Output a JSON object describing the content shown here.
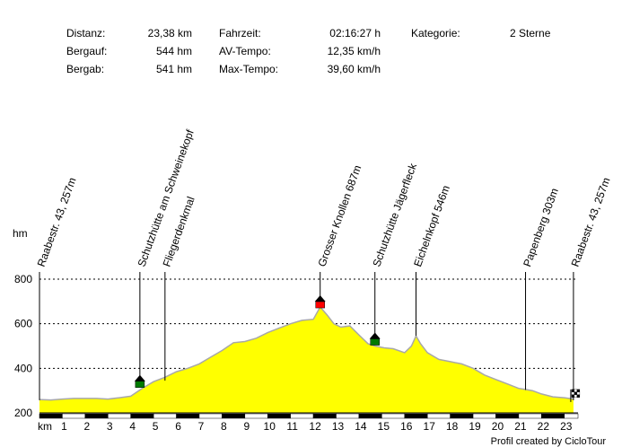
{
  "stats": {
    "distance_label": "Distanz:",
    "distance_value": "23,38 km",
    "ascent_label": "Bergauf:",
    "ascent_value": "544 hm",
    "descent_label": "Bergab:",
    "descent_value": "541 hm",
    "time_label": "Fahrzeit:",
    "time_value": "02:16:27 h",
    "avg_label": "AV-Tempo:",
    "avg_value": "12,35 km/h",
    "max_label": "Max-Tempo:",
    "max_value": "39,60 km/h",
    "category_label": "Kategorie:",
    "category_value": "2 Sterne"
  },
  "credit": "Profil created by CicloTour",
  "colors": {
    "fill": "#ffff00",
    "outline": "#a8a8a8",
    "marker_green": "#007a00",
    "marker_red": "#ff0000",
    "marker_roof": "#000000"
  },
  "chart_data": {
    "type": "area",
    "ylabel": "hm",
    "xlabel": "km",
    "xlim": [
      0,
      23.6
    ],
    "ylim": [
      200,
      800
    ],
    "yticks": [
      200,
      400,
      600,
      800
    ],
    "y_tick_labels": [
      "200",
      "400",
      "600",
      "800"
    ],
    "xticks": [
      1,
      2,
      3,
      4,
      5,
      6,
      7,
      8,
      9,
      10,
      11,
      12,
      13,
      14,
      15,
      16,
      17,
      18,
      19,
      20,
      21,
      22,
      23
    ],
    "x_tick_labels": [
      "1",
      "2",
      "3",
      "4",
      "5",
      "6",
      "7",
      "8",
      "9",
      "10",
      "11",
      "12",
      "13",
      "14",
      "15",
      "16",
      "17",
      "18",
      "19",
      "20",
      "21",
      "22",
      "23"
    ],
    "grid": "horizontal dashed",
    "x": [
      0,
      0.5,
      1,
      1.5,
      2,
      2.5,
      3,
      3.5,
      4,
      4.5,
      5,
      5.5,
      6,
      6.5,
      7,
      7.5,
      8,
      8.5,
      9,
      9.5,
      10,
      10.5,
      11,
      11.5,
      12,
      12.3,
      12.6,
      12.9,
      13.2,
      13.6,
      14,
      14.4,
      14.7,
      15.1,
      15.5,
      16,
      16.3,
      16.5,
      16.7,
      17,
      17.5,
      18,
      18.5,
      19,
      19.5,
      20,
      20.5,
      21,
      21.3,
      21.6,
      22,
      22.5,
      23,
      23.4
    ],
    "y": [
      260,
      258,
      262,
      265,
      265,
      265,
      262,
      268,
      275,
      310,
      340,
      360,
      385,
      400,
      420,
      450,
      480,
      515,
      520,
      535,
      560,
      580,
      600,
      615,
      620,
      675,
      640,
      600,
      585,
      590,
      550,
      510,
      500,
      492,
      488,
      470,
      500,
      545,
      510,
      470,
      440,
      430,
      420,
      400,
      370,
      350,
      330,
      310,
      305,
      300,
      285,
      272,
      268,
      262
    ],
    "markers": [
      {
        "label": "Raabestr. 43, 257m",
        "km": 0.0,
        "elev": 257,
        "icon": "none"
      },
      {
        "label": "Schutzhütte am Schweinekopf",
        "km": 4.4,
        "elev": 330,
        "icon": "green-hut"
      },
      {
        "label": "Fliegerdenkmal",
        "km": 5.5,
        "elev": 345,
        "icon": "none"
      },
      {
        "label": "Grosser Knollen 687m",
        "km": 12.3,
        "elev": 687,
        "icon": "red-hut"
      },
      {
        "label": "Schutzhütte Jägerfleck",
        "km": 14.7,
        "elev": 520,
        "icon": "green-hut"
      },
      {
        "label": "Eichelnkopf 546m",
        "km": 16.5,
        "elev": 546,
        "icon": "none"
      },
      {
        "label": "Papenberg 303m",
        "km": 21.3,
        "elev": 303,
        "icon": "none"
      },
      {
        "label": "Raabestr. 43, 257m",
        "km": 23.4,
        "elev": 257,
        "icon": "finish-flag"
      }
    ]
  }
}
